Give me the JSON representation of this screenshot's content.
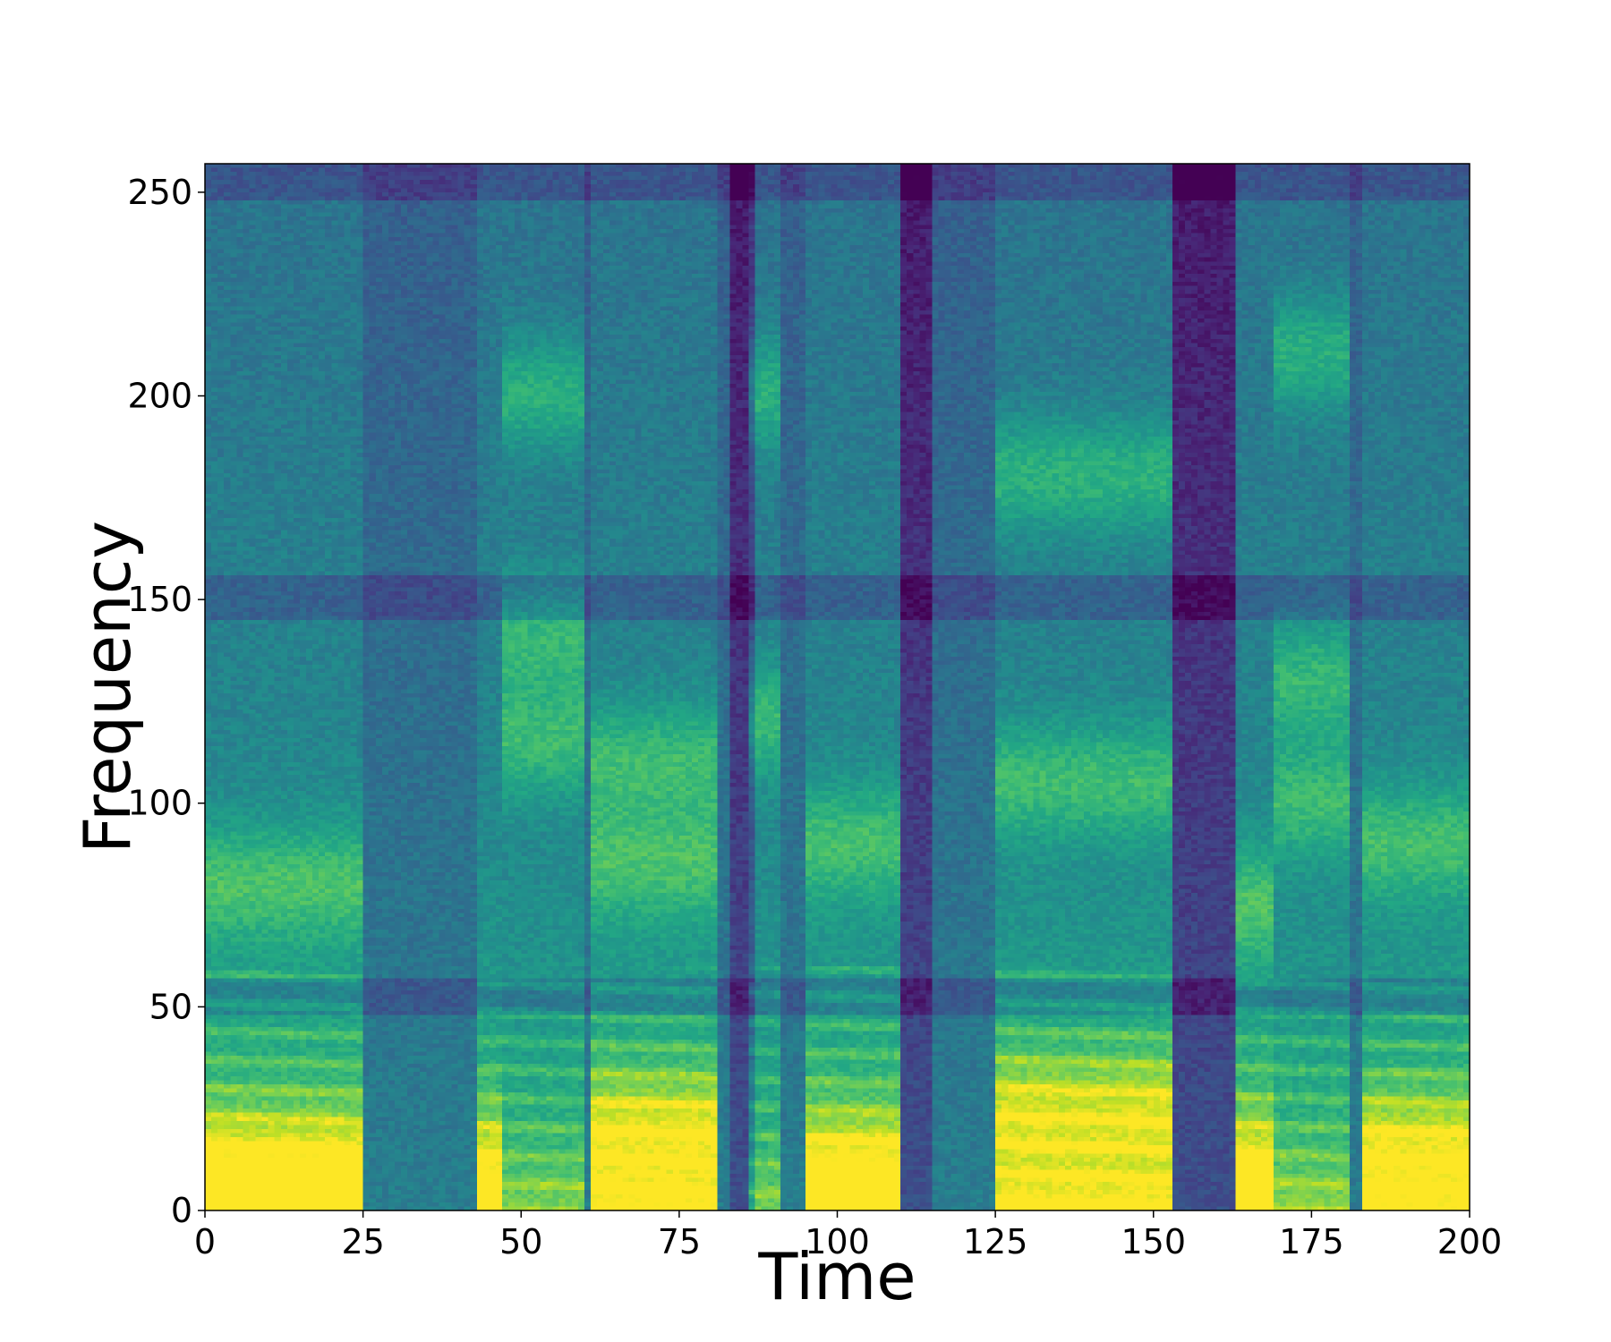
{
  "chart_data": {
    "type": "heatmap",
    "title": "",
    "xlabel": "Time",
    "ylabel": "Frequency",
    "xlim": [
      0,
      200
    ],
    "ylim": [
      0,
      257
    ],
    "x_ticks": [
      0,
      25,
      50,
      75,
      100,
      125,
      150,
      175,
      200
    ],
    "y_ticks": [
      0,
      50,
      100,
      150,
      200,
      250
    ],
    "colormap": "viridis",
    "grid": false,
    "legend": "none",
    "frames": 200,
    "bins": 257,
    "voiced_segments": [
      {
        "start": 0,
        "end": 25,
        "low_energy": 0.95,
        "formants": [
          10,
          80
        ]
      },
      {
        "start": 43,
        "end": 47,
        "low_energy": 0.8,
        "formants": [
          10
        ]
      },
      {
        "start": 47,
        "end": 60,
        "low_energy": 0.55,
        "formants": [
          115,
          140,
          200
        ]
      },
      {
        "start": 61,
        "end": 81,
        "low_energy": 0.95,
        "formants": [
          20,
          85,
          110
        ]
      },
      {
        "start": 86,
        "end": 91,
        "low_energy": 0.5,
        "formants": [
          120,
          200
        ]
      },
      {
        "start": 95,
        "end": 110,
        "low_energy": 0.9,
        "formants": [
          10,
          90
        ]
      },
      {
        "start": 125,
        "end": 153,
        "low_energy": 0.97,
        "formants": [
          25,
          105,
          180
        ]
      },
      {
        "start": 163,
        "end": 169,
        "low_energy": 0.85,
        "formants": [
          10,
          75
        ]
      },
      {
        "start": 169,
        "end": 181,
        "low_energy": 0.6,
        "formants": [
          100,
          130,
          210
        ]
      },
      {
        "start": 183,
        "end": 200,
        "low_energy": 0.85,
        "formants": [
          15,
          90
        ]
      }
    ],
    "silent_segments": [
      {
        "start": 83,
        "end": 87
      },
      {
        "start": 110,
        "end": 115
      },
      {
        "start": 153,
        "end": 163
      }
    ]
  }
}
